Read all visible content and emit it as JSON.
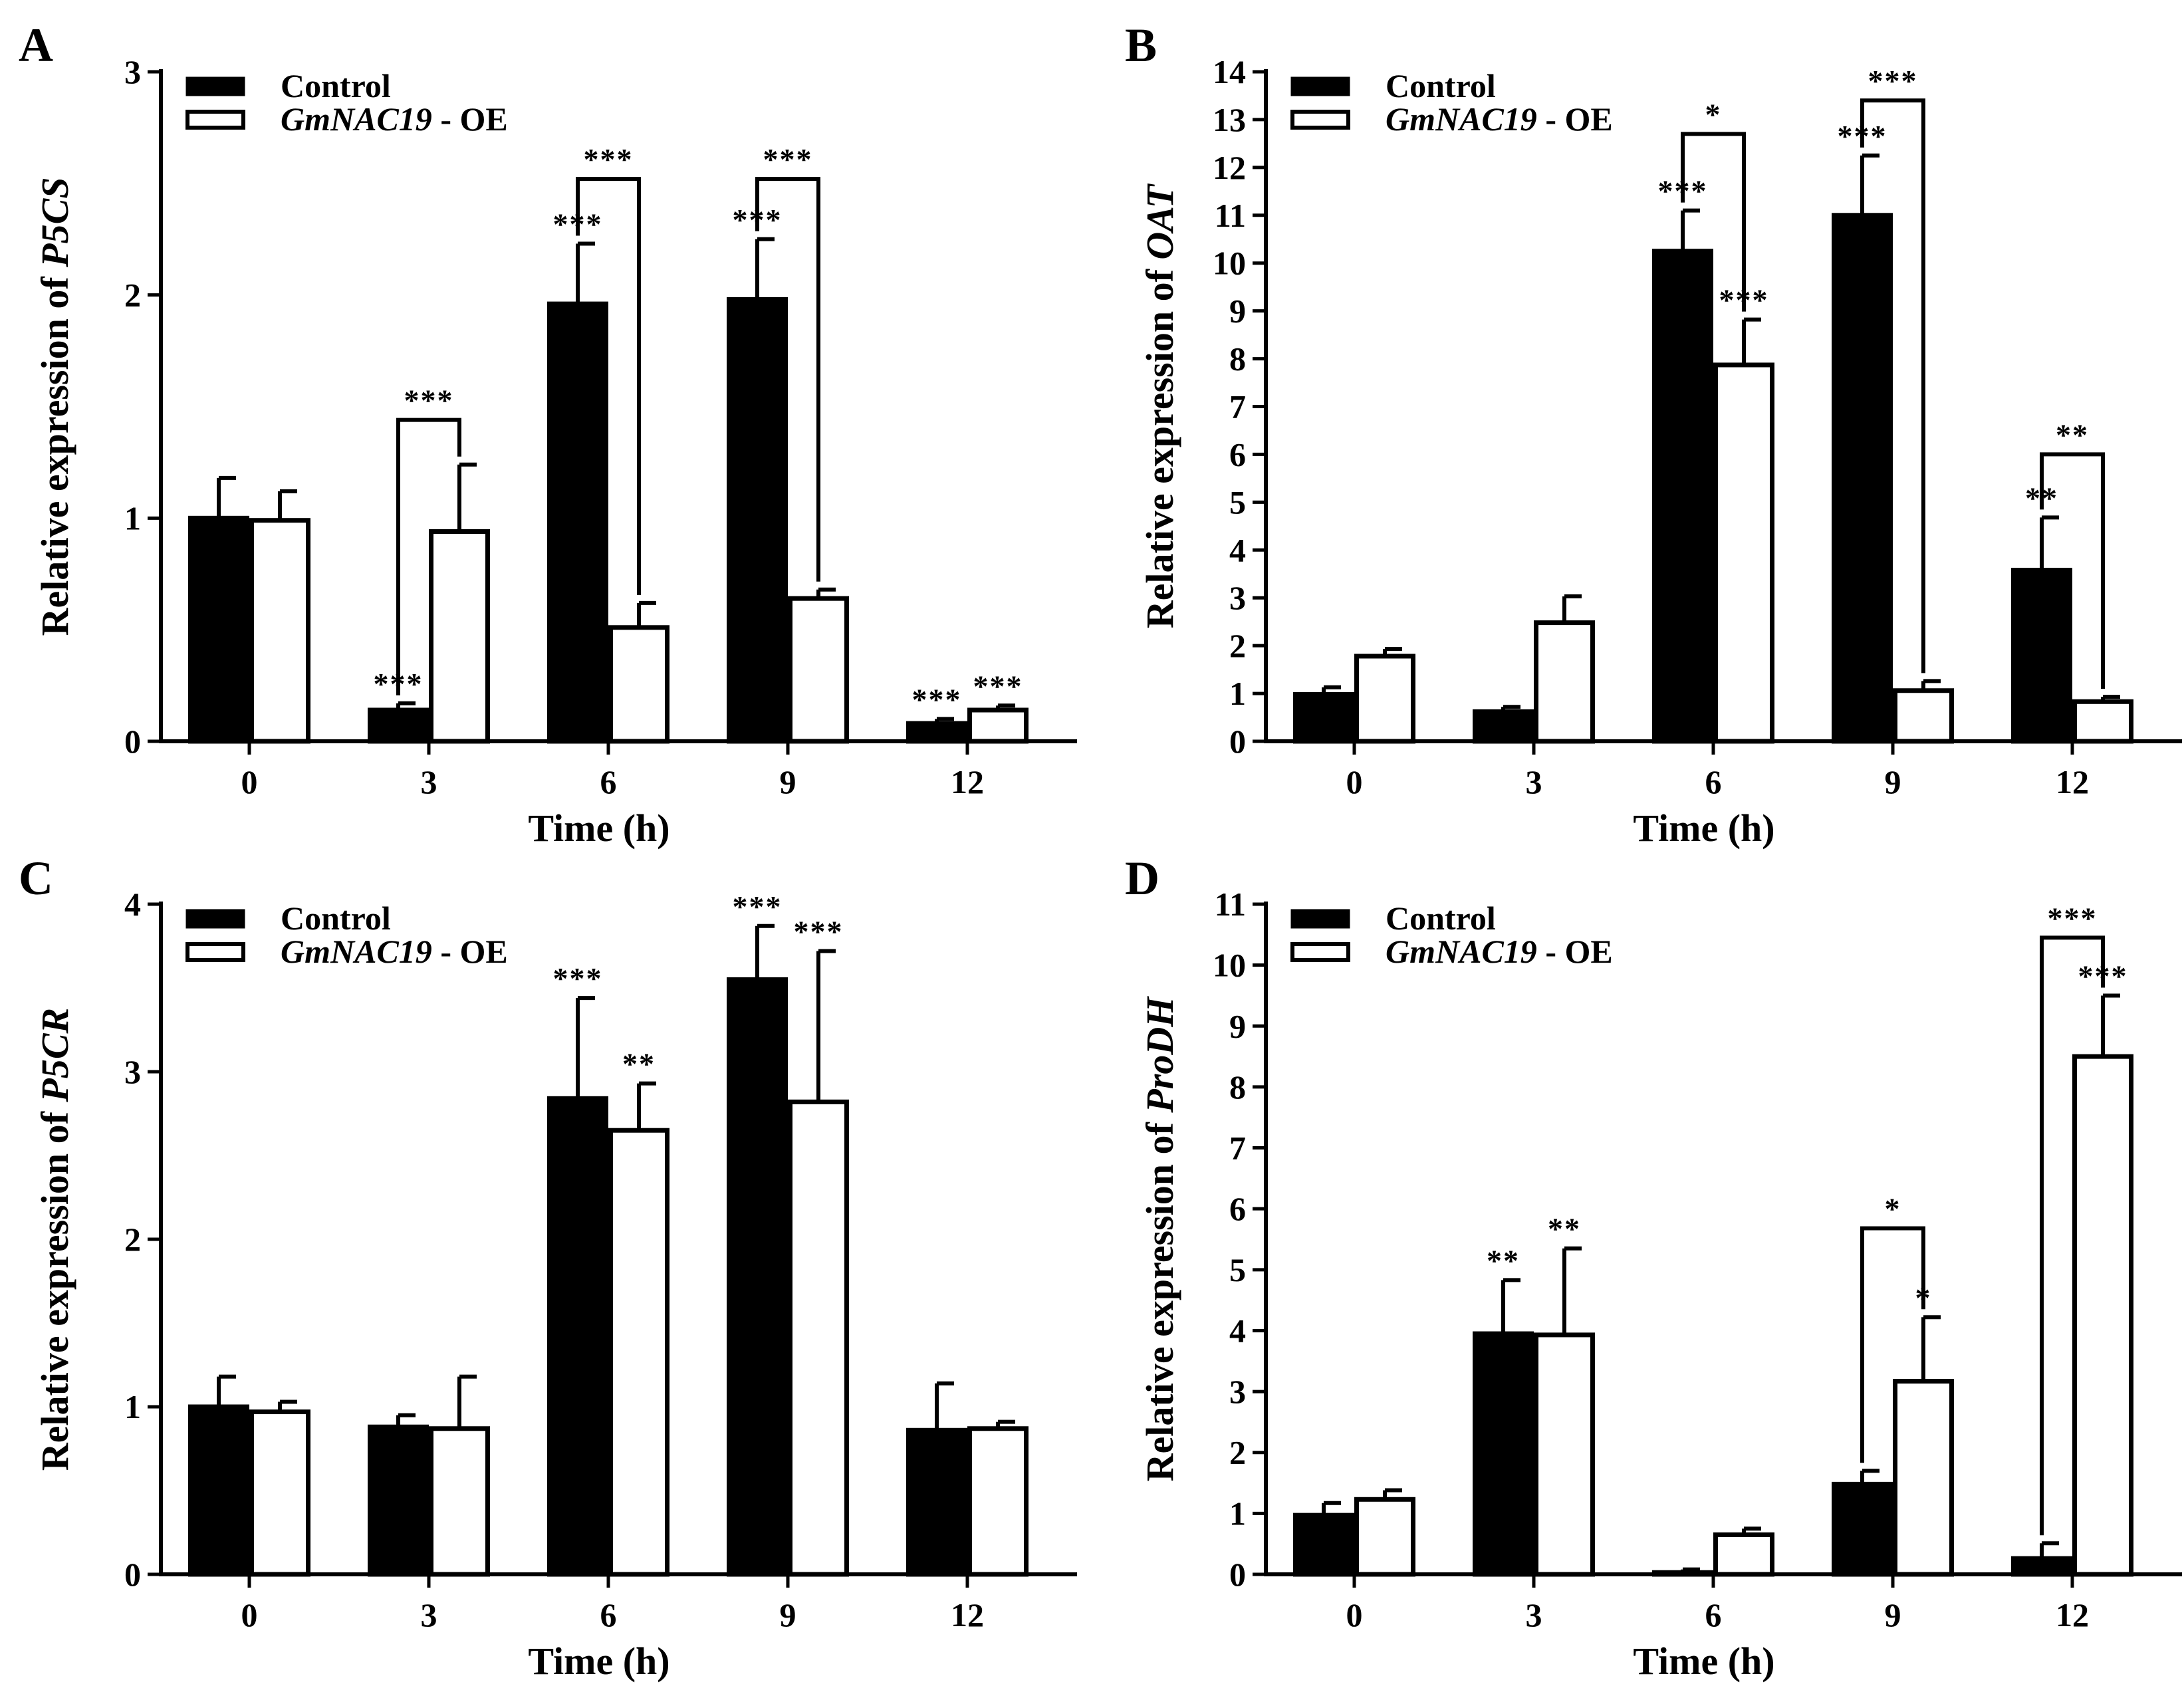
{
  "legend": {
    "control": "Control",
    "oe_gene": "GmNAC19",
    "oe_suffix": " - OE"
  },
  "colors": {
    "control": "#000000",
    "oe": "#ffffff",
    "stroke": "#000000"
  },
  "chart_data": [
    {
      "type": "bar",
      "panel": "A",
      "categories": [
        "0",
        "3",
        "6",
        "9",
        "12"
      ],
      "xlabel": "Time (h)",
      "ylabel_prefix": "Relative expression of ",
      "ylabel_gene": "P5CS",
      "ylim": [
        0,
        3
      ],
      "yticks": [
        0,
        1,
        2,
        3
      ],
      "series": [
        {
          "name": "Control",
          "values": [
            1.0,
            0.14,
            1.96,
            1.98,
            0.08
          ],
          "errors": [
            0.18,
            0.03,
            0.27,
            0.27,
            0.02
          ]
        },
        {
          "name": "GmNAC19 - OE",
          "values": [
            0.99,
            0.94,
            0.51,
            0.64,
            0.14
          ],
          "errors": [
            0.13,
            0.3,
            0.11,
            0.04,
            0.02
          ]
        }
      ],
      "significance": [
        {
          "cat": 1,
          "series": 0,
          "label": "***"
        },
        {
          "cat": 4,
          "series": 0,
          "label": "***"
        },
        {
          "cat": 4,
          "series": 1,
          "label": "***"
        },
        {
          "cat": 6,
          "series": 0,
          "label": "***"
        },
        {
          "cat": 9,
          "series": 0,
          "label": "***"
        }
      ],
      "brackets": [
        {
          "cat": 1,
          "top": 1.44,
          "label": "***"
        },
        {
          "cat": 2,
          "top": 2.52,
          "label": "***"
        },
        {
          "cat": 3,
          "top": 2.52,
          "label": "***"
        }
      ]
    },
    {
      "type": "bar",
      "panel": "B",
      "categories": [
        "0",
        "3",
        "6",
        "9",
        "12"
      ],
      "xlabel": "Time (h)",
      "ylabel_prefix": "Relative expression of ",
      "ylabel_gene": "OAT",
      "ylim": [
        0,
        14
      ],
      "yticks": [
        0,
        1,
        2,
        3,
        4,
        5,
        6,
        7,
        8,
        9,
        10,
        11,
        12,
        13,
        14
      ],
      "series": [
        {
          "name": "Control",
          "values": [
            0.98,
            0.62,
            10.25,
            11.0,
            3.58
          ],
          "errors": [
            0.15,
            0.1,
            0.85,
            1.25,
            1.1
          ]
        },
        {
          "name": "GmNAC19 - OE",
          "values": [
            1.78,
            2.48,
            7.87,
            1.06,
            0.83
          ],
          "errors": [
            0.15,
            0.55,
            0.95,
            0.2,
            0.1
          ]
        }
      ],
      "significance": [
        {
          "cat": 2,
          "series": 0,
          "label": "***"
        },
        {
          "cat": 2,
          "series": 1,
          "label": "***"
        },
        {
          "cat": 3,
          "series": 0,
          "label": "***"
        },
        {
          "cat": 4,
          "series": 0,
          "label": "**"
        }
      ],
      "brackets": [
        {
          "cat": 2,
          "top": 12.7,
          "label": "*"
        },
        {
          "cat": 3,
          "top": 13.4,
          "label": "***"
        },
        {
          "cat": 4,
          "top": 6.0,
          "label": "**"
        }
      ]
    },
    {
      "type": "bar",
      "panel": "C",
      "categories": [
        "0",
        "3",
        "6",
        "9",
        "12"
      ],
      "xlabel": "Time (h)",
      "ylabel_prefix": "Relative expression of ",
      "ylabel_gene": "P5CR",
      "ylim": [
        0,
        4
      ],
      "yticks": [
        0,
        1,
        2,
        3,
        4
      ],
      "series": [
        {
          "name": "Control",
          "values": [
            1.0,
            0.88,
            2.84,
            3.55,
            0.86
          ],
          "errors": [
            0.18,
            0.07,
            0.6,
            0.32,
            0.28
          ]
        },
        {
          "name": "GmNAC19 - OE",
          "values": [
            0.97,
            0.87,
            2.65,
            2.82,
            0.87
          ],
          "errors": [
            0.06,
            0.31,
            0.28,
            0.9,
            0.04
          ]
        }
      ],
      "significance": [
        {
          "cat": 2,
          "series": 0,
          "label": "***"
        },
        {
          "cat": 2,
          "series": 1,
          "label": "**"
        },
        {
          "cat": 3,
          "series": 0,
          "label": "***"
        },
        {
          "cat": 3,
          "series": 1,
          "label": "***"
        }
      ],
      "brackets": []
    },
    {
      "type": "bar",
      "panel": "D",
      "categories": [
        "0",
        "3",
        "6",
        "9",
        "12"
      ],
      "xlabel": "Time (h)",
      "ylabel_prefix": "Relative expression of ",
      "ylabel_gene": "ProDH",
      "ylim": [
        0,
        11
      ],
      "yticks": [
        0,
        1,
        2,
        3,
        4,
        5,
        6,
        7,
        8,
        9,
        10,
        11
      ],
      "series": [
        {
          "name": "Control",
          "values": [
            0.97,
            3.95,
            0.03,
            1.48,
            0.26
          ],
          "errors": [
            0.2,
            0.88,
            0.05,
            0.22,
            0.25
          ]
        },
        {
          "name": "GmNAC19 - OE",
          "values": [
            1.23,
            3.93,
            0.65,
            3.17,
            8.5
          ],
          "errors": [
            0.15,
            1.42,
            0.1,
            1.05,
            1.0
          ]
        }
      ],
      "significance": [
        {
          "cat": 1,
          "series": 0,
          "label": "**"
        },
        {
          "cat": 1,
          "series": 1,
          "label": "**"
        },
        {
          "cat": 3,
          "series": 1,
          "label": "*"
        },
        {
          "cat": 4,
          "series": 1,
          "label": "***"
        }
      ],
      "brackets": [
        {
          "cat": 3,
          "top": 5.68,
          "label": "*"
        },
        {
          "cat": 4,
          "top": 10.45,
          "label": "***"
        }
      ]
    }
  ]
}
